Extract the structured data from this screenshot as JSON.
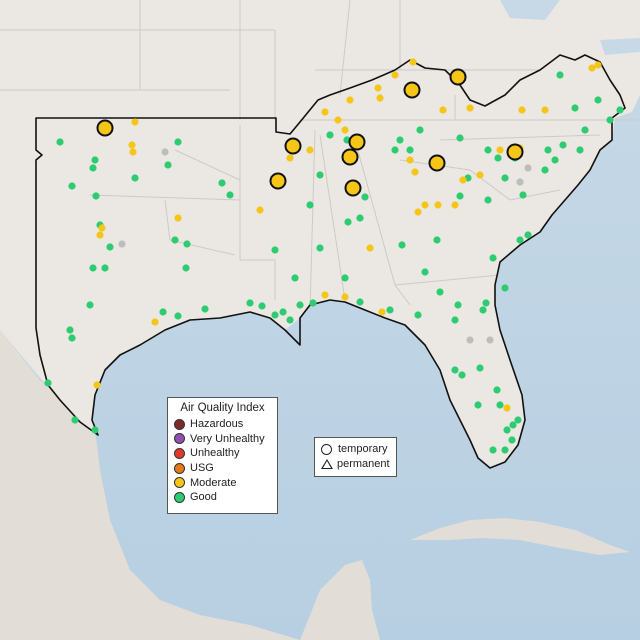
{
  "legend": {
    "title": "Air Quality Index",
    "categories": [
      {
        "label": "Hazardous",
        "color": "#7e2a2a"
      },
      {
        "label": "Very Unhealthy",
        "color": "#8f4fb0"
      },
      {
        "label": "Unhealthy",
        "color": "#e0392b"
      },
      {
        "label": "USG",
        "color": "#e07b1a"
      },
      {
        "label": "Moderate",
        "color": "#f5c518"
      },
      {
        "label": "Good",
        "color": "#2ecc71"
      }
    ]
  },
  "site_legend": {
    "temporary": "temporary",
    "permanent": "permanent"
  },
  "colors": {
    "land": "#ebe8e4",
    "water": "#bcd3e3",
    "no_data": "#bdbdbd"
  }
}
